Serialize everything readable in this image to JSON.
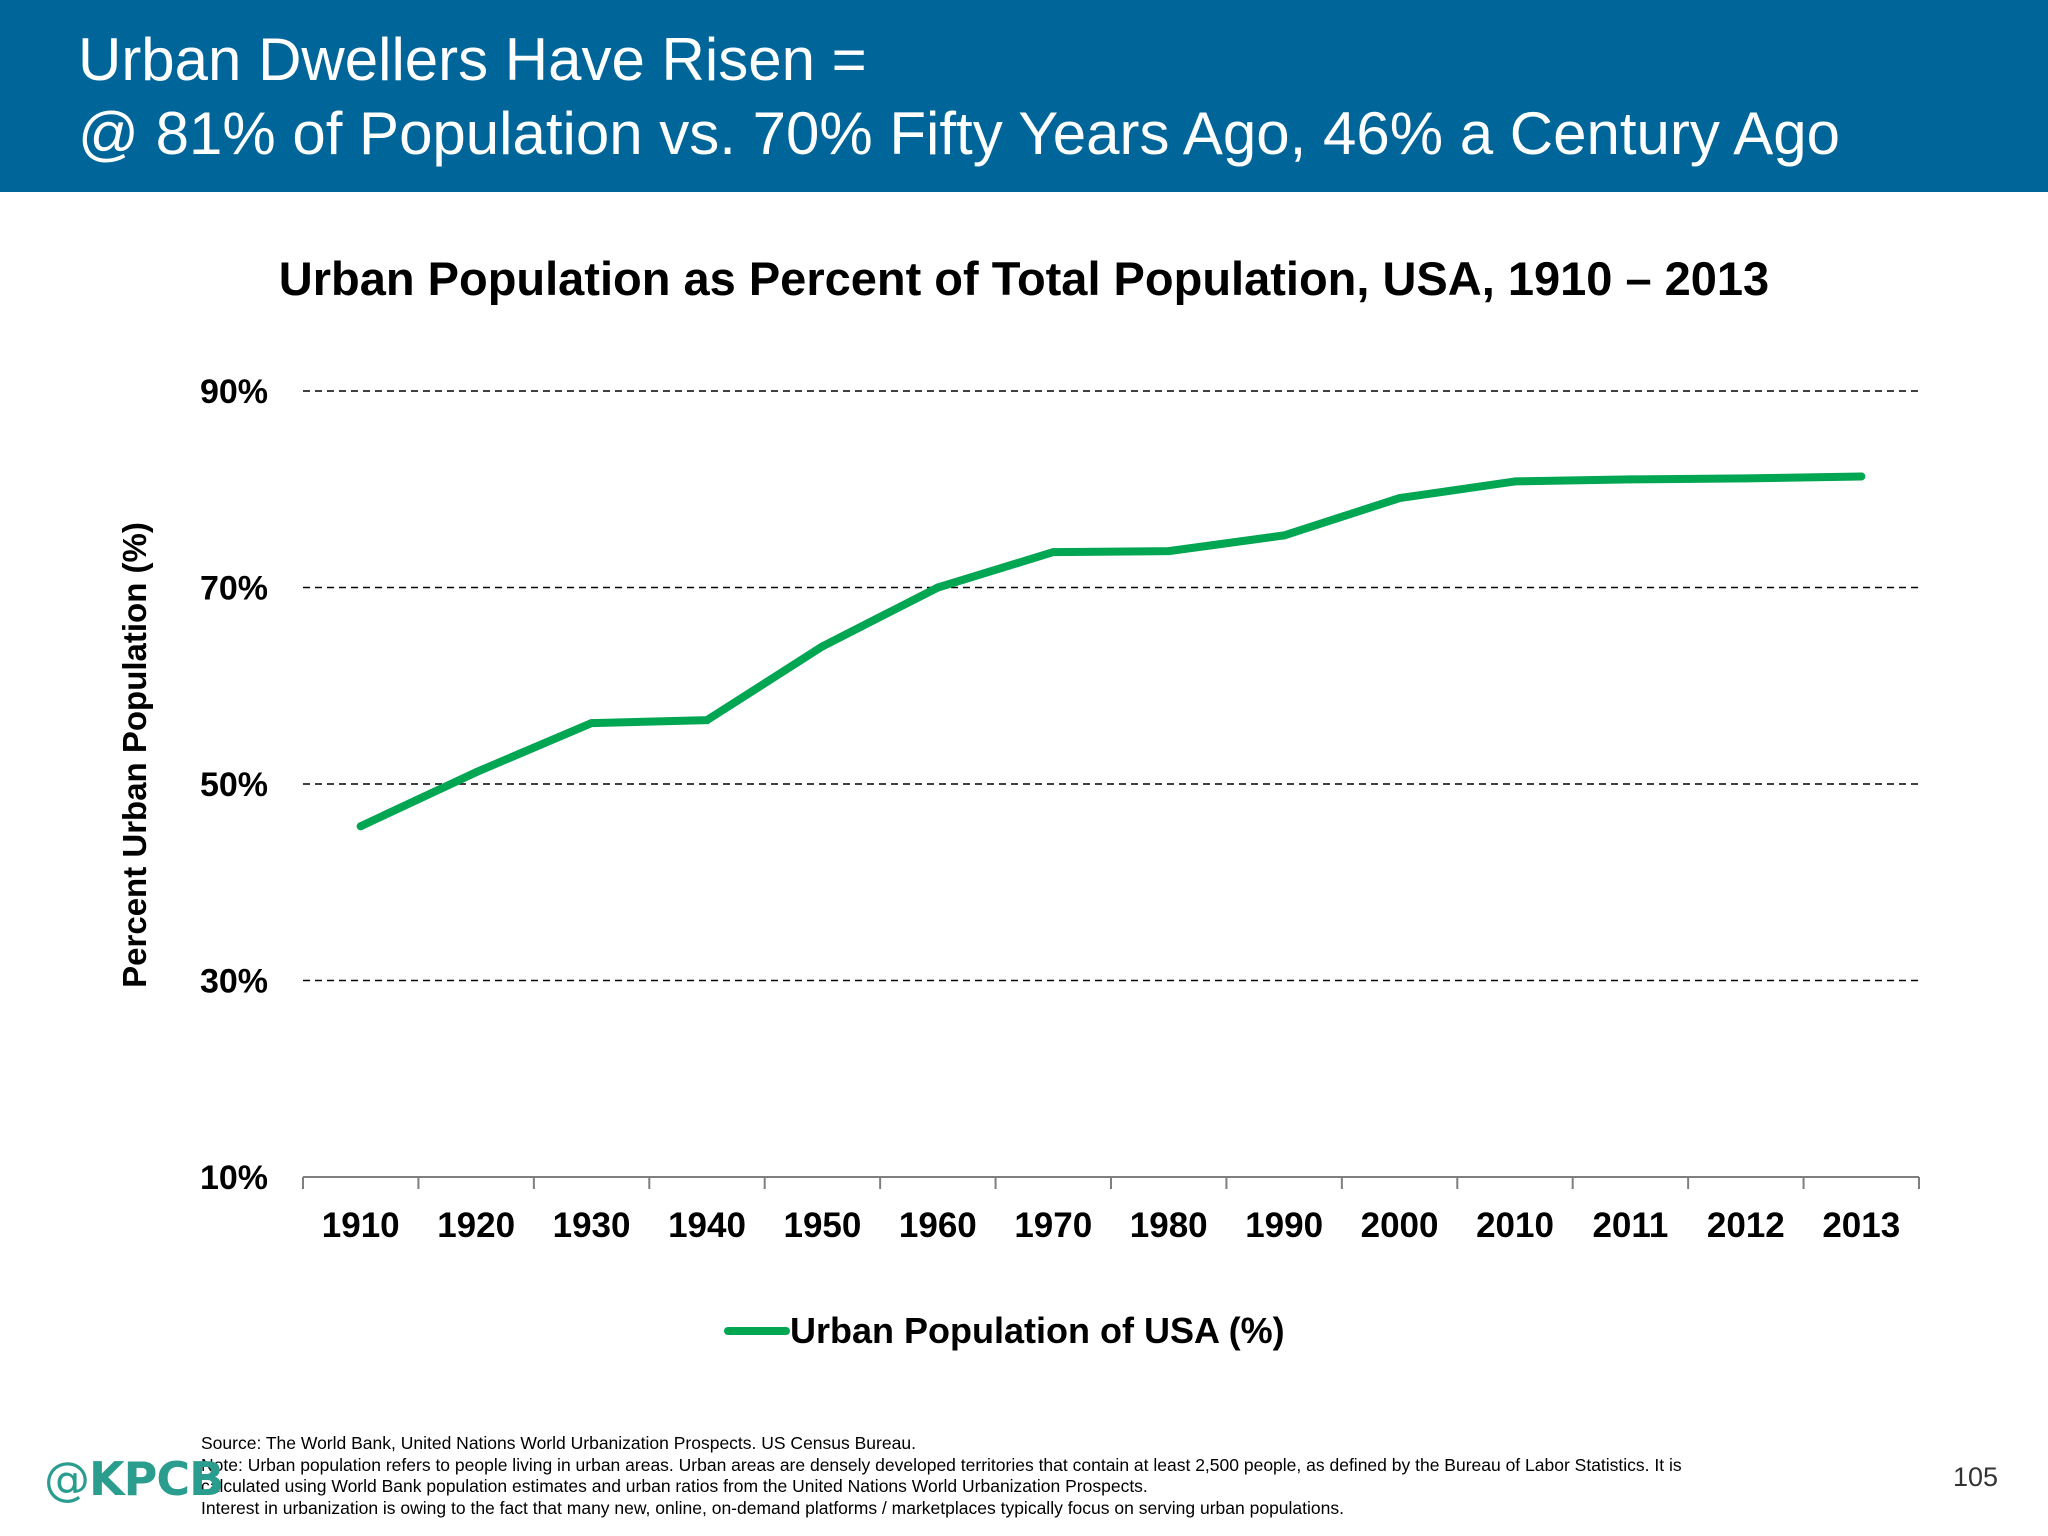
{
  "slide": {
    "title_line1": "Urban Dwellers Have Risen =",
    "title_line2": "@ 81% of Population vs. 70% Fifty Years Ago, 46% a Century Ago",
    "footer_lines": [
      "Source: The World Bank, United Nations World Urbanization Prospects. US Census Bureau.",
      "Note: Urban population refers to people living in urban areas. Urban areas are densely developed territories that contain at least 2,500 people, as defined by the Bureau of Labor Statistics. It is",
      "calculated using World Bank population estimates and urban ratios from the United Nations World Urbanization Prospects.",
      "Interest in urbanization is owing to the fact that many new, online, on-demand platforms / marketplaces typically focus on serving urban populations."
    ],
    "logo_at": "@",
    "logo_text": "KPCB",
    "page_number": "105"
  },
  "chart_data": {
    "type": "line",
    "title": "Urban Population as Percent of Total Population, USA, 1910 – 2013",
    "ylabel": "Percent Urban Population (%)",
    "xlabel": "",
    "categories": [
      "1910",
      "1920",
      "1930",
      "1940",
      "1950",
      "1960",
      "1970",
      "1980",
      "1990",
      "2000",
      "2010",
      "2011",
      "2012",
      "2013"
    ],
    "series": [
      {
        "name": "Urban Population of USA (%)",
        "values": [
          45.7,
          51.2,
          56.2,
          56.5,
          64.0,
          70.0,
          73.6,
          73.7,
          75.3,
          79.1,
          80.8,
          81.0,
          81.1,
          81.3
        ],
        "color": "#00a651"
      }
    ],
    "ylim": [
      10,
      90
    ],
    "yticks": [
      10,
      30,
      50,
      70,
      90
    ],
    "ytick_labels": [
      "10%",
      "30%",
      "50%",
      "70%",
      "90%"
    ],
    "grid": "horizontal-dashed",
    "legend_position": "bottom-center"
  }
}
